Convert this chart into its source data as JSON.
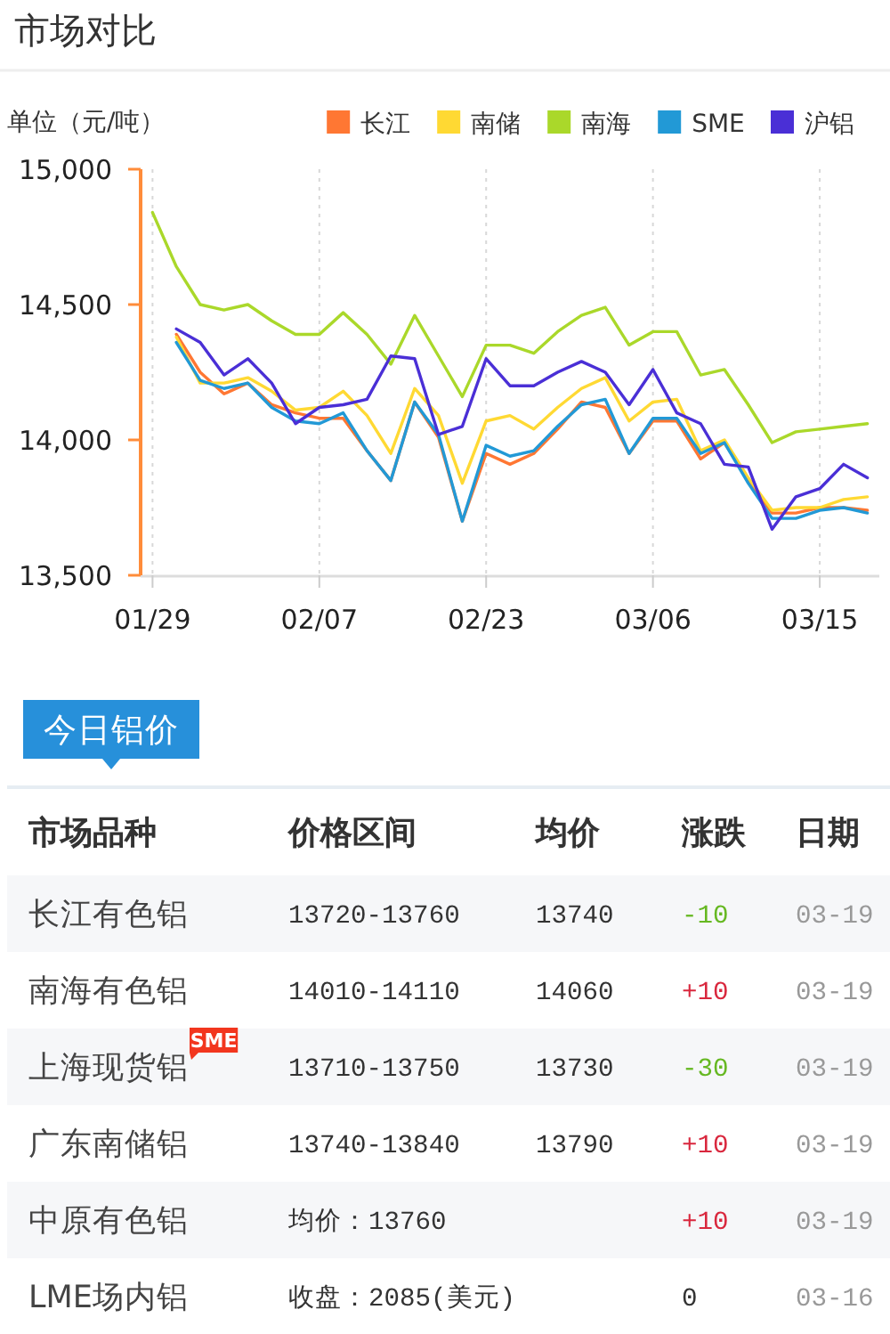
{
  "chart_data": [
    {
      "type": "line",
      "title": "市场对比",
      "ylabel": "单位（元/吨）",
      "categories": [
        "01/29",
        null,
        null,
        null,
        null,
        null,
        null,
        "02/07",
        null,
        null,
        null,
        null,
        null,
        null,
        "02/23",
        null,
        null,
        null,
        null,
        null,
        null,
        "03/06",
        null,
        null,
        null,
        null,
        null,
        null,
        "03/15",
        null,
        null
      ],
      "series": [
        {
          "name": "长江",
          "color": "#ff7733",
          "values": [
            null,
            14390,
            14250,
            14170,
            14210,
            14130,
            14100,
            14080,
            14080,
            13960,
            13850,
            14140,
            14010,
            13700,
            13950,
            13910,
            13950,
            14040,
            14140,
            14120,
            13950,
            14070,
            14070,
            13930,
            13990,
            13850,
            13730,
            13730,
            13750,
            13750,
            13740
          ]
        },
        {
          "name": "南储",
          "color": "#ffd933",
          "values": [
            null,
            14380,
            14210,
            14210,
            14230,
            14180,
            14110,
            14120,
            14180,
            14090,
            13950,
            14190,
            14090,
            13840,
            14070,
            14090,
            14040,
            14120,
            14190,
            14230,
            14070,
            14140,
            14150,
            13960,
            14000,
            13860,
            13740,
            13750,
            13750,
            13780,
            13790
          ]
        },
        {
          "name": "南海",
          "color": "#aad82a",
          "values": [
            14840,
            14640,
            14500,
            14480,
            14500,
            14440,
            14390,
            14390,
            14470,
            14390,
            14280,
            14460,
            14310,
            14160,
            14350,
            14350,
            14320,
            14400,
            14460,
            14490,
            14350,
            14400,
            14400,
            14240,
            14260,
            14130,
            13990,
            14030,
            14040,
            14050,
            14060
          ]
        },
        {
          "name": "SME",
          "color": "#2299d6",
          "values": [
            null,
            14360,
            14220,
            14190,
            14210,
            14120,
            14070,
            14060,
            14100,
            13960,
            13850,
            14140,
            14020,
            13700,
            13980,
            13940,
            13960,
            14050,
            14130,
            14150,
            13950,
            14080,
            14080,
            13950,
            13990,
            13840,
            13710,
            13710,
            13740,
            13750,
            13730
          ]
        },
        {
          "name": "沪铝",
          "color": "#4a2fd6",
          "values": [
            null,
            14410,
            14360,
            14240,
            14300,
            14210,
            14060,
            14120,
            14130,
            14150,
            14310,
            14300,
            14020,
            14050,
            14300,
            14200,
            14200,
            14250,
            14290,
            14250,
            14130,
            14260,
            14100,
            14060,
            13910,
            13900,
            13670,
            13790,
            13820,
            13910,
            13860
          ]
        }
      ],
      "ylim": [
        13500,
        15000
      ],
      "yticks": [
        {
          "value": 13500,
          "label": "13,500"
        },
        {
          "value": 14000,
          "label": "14,000"
        },
        {
          "value": 14500,
          "label": "14,500"
        },
        {
          "value": 15000,
          "label": "15,000"
        }
      ],
      "grid": "x",
      "legend": "top right"
    },
    {
      "type": "other",
      "title": "今日铝价",
      "ylabel": "市场品种",
      "categories": [
        "价格区间",
        "均价",
        "涨跌",
        "日期"
      ],
      "y_categories": [
        "长江有色铝",
        "南海有色铝",
        "上海现货铝$^{SME}$",
        "广东南储铝",
        "中原有色铝",
        "LME场内铝"
      ],
      "cell_labels": [
        [
          "13720-13760",
          "13740",
          "-10",
          "03-19"
        ],
        [
          "14010-14110",
          "14060",
          "+10",
          "03-19"
        ],
        [
          "13710-13750",
          "13730",
          "-30",
          "03-19"
        ],
        [
          "13740-13840",
          "13790",
          "+10",
          "03-19"
        ],
        [
          "均价：13760",
          null,
          "+10",
          "03-19"
        ],
        [
          "收盘：2085(美元)",
          null,
          "0",
          "03-16"
        ]
      ]
    }
  ]
}
